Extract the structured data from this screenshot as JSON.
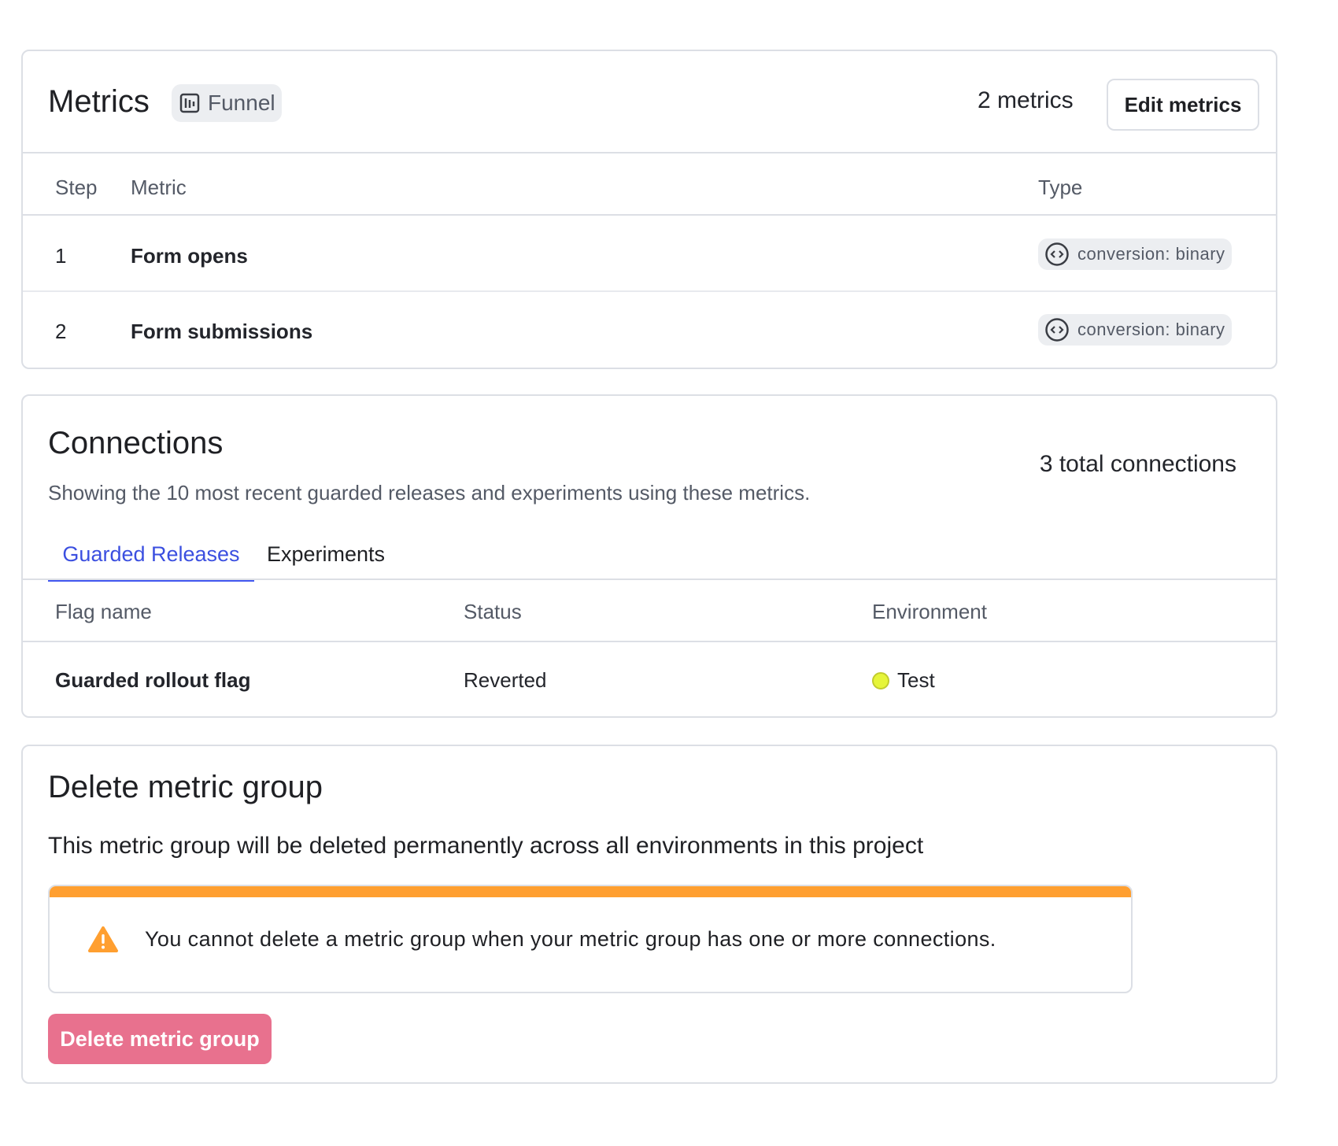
{
  "metrics": {
    "title": "Metrics",
    "badge": {
      "label": "Funnel",
      "icon": "funnel-chart-icon"
    },
    "count": "2 metrics",
    "edit_button": "Edit metrics",
    "columns": [
      "Step",
      "Metric",
      "Type"
    ],
    "rows": [
      {
        "step": "1",
        "metric": "Form opens",
        "type": "conversion: binary",
        "type_icon": "code-circle-icon"
      },
      {
        "step": "2",
        "metric": "Form submissions",
        "type": "conversion: binary",
        "type_icon": "code-circle-icon"
      }
    ]
  },
  "connections": {
    "title": "Connections",
    "subtitle": "Showing the 10 most recent guarded releases and experiments using these metrics.",
    "total": "3 total connections",
    "tabs": [
      {
        "label": "Guarded Releases",
        "active": true
      },
      {
        "label": "Experiments",
        "active": false
      }
    ],
    "columns": [
      "Flag name",
      "Status",
      "Environment"
    ],
    "rows": [
      {
        "flag": "Guarded rollout flag",
        "status": "Reverted",
        "environment": "Test",
        "env_color": "#e6f53a"
      }
    ]
  },
  "delete": {
    "title": "Delete metric group",
    "description": "This metric group will be deleted permanently across all environments in this project",
    "warning": {
      "text": "You cannot delete a metric group when your metric group has one or more connections.",
      "icon": "warning-triangle-icon"
    },
    "button": "Delete metric group"
  },
  "colors": {
    "accent": "#4157f0",
    "warning": "#ff9f30",
    "danger_disabled": "#e8718e",
    "border": "#dcdfe5"
  }
}
